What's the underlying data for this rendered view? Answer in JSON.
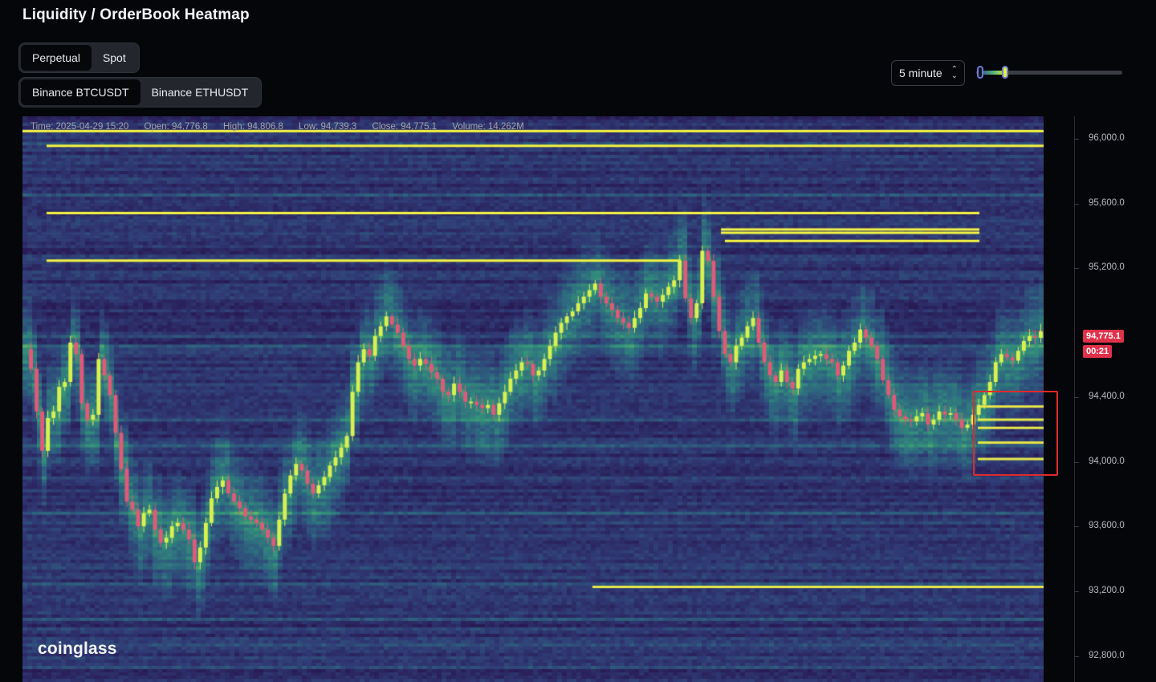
{
  "title": "Liquidity / OrderBook Heatmap",
  "market_type": {
    "options": [
      "Perpetual",
      "Spot"
    ],
    "selected": "Perpetual"
  },
  "symbol": {
    "options": [
      "Binance BTCUSDT",
      "Binance ETHUSDT"
    ],
    "selected": "Binance BTCUSDT"
  },
  "interval": {
    "value": "5 minute",
    "icon": "chevron-updown-icon"
  },
  "intensity_slider": {
    "low": 0.03,
    "high": 0.2
  },
  "candle_info": {
    "time": "Time: 2025-04-29 15:20",
    "open": "Open: 94,776.8",
    "high": "High: 94,806.8",
    "low": "Low: 94,739.3",
    "close": "Close: 94,775.1",
    "volume": "Volume: 14.262M"
  },
  "price_axis": {
    "ticks": [
      "96,000.0",
      "95,600.0",
      "95,200.0",
      "94,400.0",
      "94,000.0",
      "93,600.0",
      "93,200.0",
      "92,800.0"
    ],
    "current_price": "94,775.1",
    "countdown": "00:21"
  },
  "watermark": "coinglass",
  "colors": {
    "up": "#d9f050",
    "down": "#e05a78",
    "liquidity_high": "#f5f542",
    "background": "#04060a",
    "price_tag": "#e0314b",
    "highlight_box": "#e02a2a"
  },
  "chart_data": {
    "type": "heatmap",
    "ylim": [
      92650,
      96100
    ],
    "candles_close": [
      94680,
      94560,
      94300,
      94060,
      94260,
      94300,
      94450,
      94480,
      94720,
      94650,
      94350,
      94250,
      94280,
      94620,
      94520,
      94400,
      94170,
      93950,
      93750,
      93700,
      93600,
      93680,
      93700,
      93580,
      93500,
      93530,
      93600,
      93620,
      93580,
      93520,
      93380,
      93470,
      93620,
      93770,
      93840,
      93880,
      93800,
      93750,
      93710,
      93660,
      93640,
      93620,
      93580,
      93530,
      93480,
      93640,
      93800,
      93910,
      93980,
      93940,
      93860,
      93800,
      93850,
      93900,
      93970,
      94020,
      94080,
      94150,
      94420,
      94600,
      94680,
      94640,
      94760,
      94820,
      94880,
      94830,
      94780,
      94700,
      94620,
      94580,
      94620,
      94590,
      94540,
      94500,
      94420,
      94400,
      94470,
      94420,
      94360,
      94360,
      94340,
      94320,
      94340,
      94280,
      94350,
      94420,
      94500,
      94550,
      94600,
      94590,
      94520,
      94550,
      94620,
      94700,
      94780,
      94840,
      94880,
      94910,
      94960,
      95000,
      95040,
      95080,
      95000,
      94960,
      94920,
      94870,
      94840,
      94810,
      94870,
      94930,
      95020,
      95000,
      94970,
      95010,
      95060,
      95100,
      95220,
      94990,
      94870,
      94960,
      95280,
      95220,
      95000,
      94790,
      94650,
      94600,
      94700,
      94750,
      94820,
      94870,
      94720,
      94600,
      94520,
      94480,
      94550,
      94480,
      94440,
      94560,
      94600,
      94620,
      94640,
      94650,
      94620,
      94600,
      94520,
      94580,
      94670,
      94720,
      94800,
      94750,
      94700,
      94620,
      94490,
      94400,
      94310,
      94270,
      94250,
      94240,
      94270,
      94290,
      94220,
      94250,
      94300,
      94280,
      94290,
      94250,
      94200,
      94220,
      94280,
      94340,
      94400,
      94480,
      94600,
      94650,
      94630,
      94610,
      94670,
      94730,
      94760,
      94750,
      94790
    ],
    "liquidity_levels": [
      {
        "price": 96010,
        "strength": 1.0
      },
      {
        "price": 95920,
        "strength": 1.0
      },
      {
        "price": 95510,
        "strength": 1.0
      },
      {
        "price": 95410,
        "strength": 1.0
      },
      {
        "price": 95390,
        "strength": 1.0
      },
      {
        "price": 95340,
        "strength": 1.0
      },
      {
        "price": 95220,
        "strength": 1.0
      },
      {
        "price": 94330,
        "strength": 0.9
      },
      {
        "price": 94250,
        "strength": 0.9
      },
      {
        "price": 94200,
        "strength": 0.9
      },
      {
        "price": 94110,
        "strength": 0.9
      },
      {
        "price": 94010,
        "strength": 0.9
      },
      {
        "price": 93230,
        "strength": 0.8
      }
    ]
  }
}
